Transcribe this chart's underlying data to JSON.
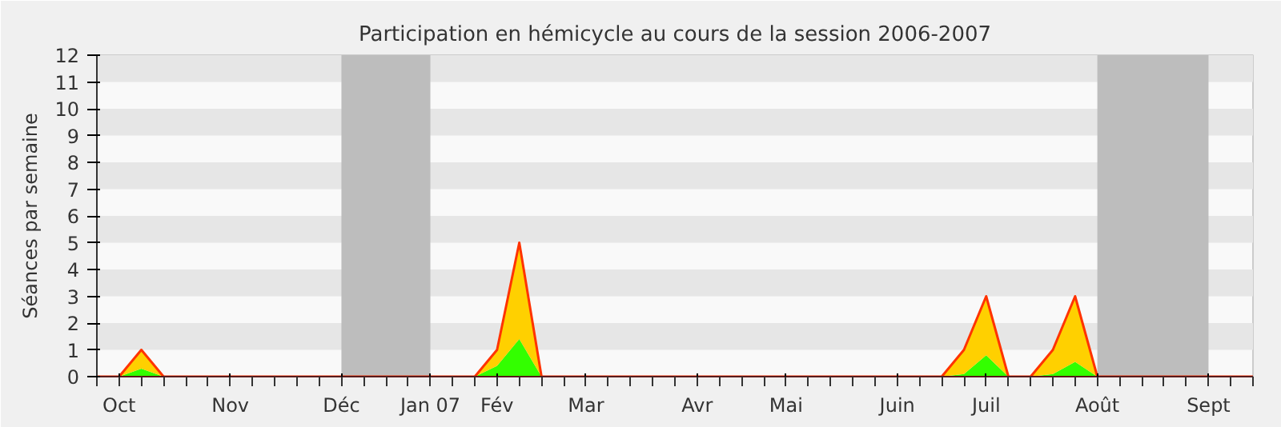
{
  "chart_data": {
    "type": "area",
    "title": "Participation en hémicycle au cours de la session 2006-2007",
    "ylabel": "Séances par semaine",
    "categories": [
      null,
      "Oct",
      null,
      null,
      null,
      null,
      "Nov",
      null,
      null,
      null,
      null,
      "Déc",
      null,
      null,
      null,
      "Jan 07",
      null,
      null,
      "Fév",
      null,
      null,
      null,
      "Mar",
      null,
      null,
      null,
      null,
      "Avr",
      null,
      null,
      null,
      "Mai",
      null,
      null,
      null,
      null,
      "Juin",
      null,
      null,
      null,
      "Juil",
      null,
      null,
      null,
      null,
      "Août",
      null,
      null,
      null,
      null,
      "Sept",
      null,
      null
    ],
    "stacked": true,
    "series": [
      {
        "color": "#33ff00",
        "values": [
          0,
          0,
          0.3,
          0,
          0,
          0,
          0,
          0,
          0,
          0,
          0,
          0,
          0,
          0,
          0,
          0,
          0,
          0,
          0.4,
          1.4,
          0,
          0,
          0,
          0,
          0,
          0,
          0,
          0,
          0,
          0,
          0,
          0,
          0,
          0,
          0,
          0,
          0,
          0,
          0,
          0.1,
          0.8,
          0,
          0,
          0.1,
          0.55,
          0,
          0,
          0,
          0,
          0,
          0,
          0,
          0
        ]
      },
      {
        "color": "#ffd000",
        "values": [
          0,
          0,
          0.7,
          0,
          0,
          0,
          0,
          0,
          0,
          0,
          0,
          0,
          0,
          0,
          0,
          0,
          0,
          0,
          0.6,
          3.6,
          0,
          0,
          0,
          0,
          0,
          0,
          0,
          0,
          0,
          0,
          0,
          0,
          0,
          0,
          0,
          0,
          0,
          0,
          0,
          0.9,
          2.2,
          0,
          0,
          0.9,
          2.45,
          0,
          0,
          0,
          0,
          0,
          0,
          0,
          0
        ]
      }
    ],
    "ylim": [
      0,
      12
    ],
    "yticks": [
      0,
      1,
      2,
      3,
      4,
      5,
      6,
      7,
      8,
      9,
      10,
      11,
      12
    ],
    "bands": [
      {
        "axis": "x",
        "from": "Déc",
        "to": "Jan 07",
        "color": "#bdbdbd"
      },
      {
        "axis": "x",
        "from": "Août",
        "to": "Sept",
        "color": "#bdbdbd"
      }
    ]
  }
}
